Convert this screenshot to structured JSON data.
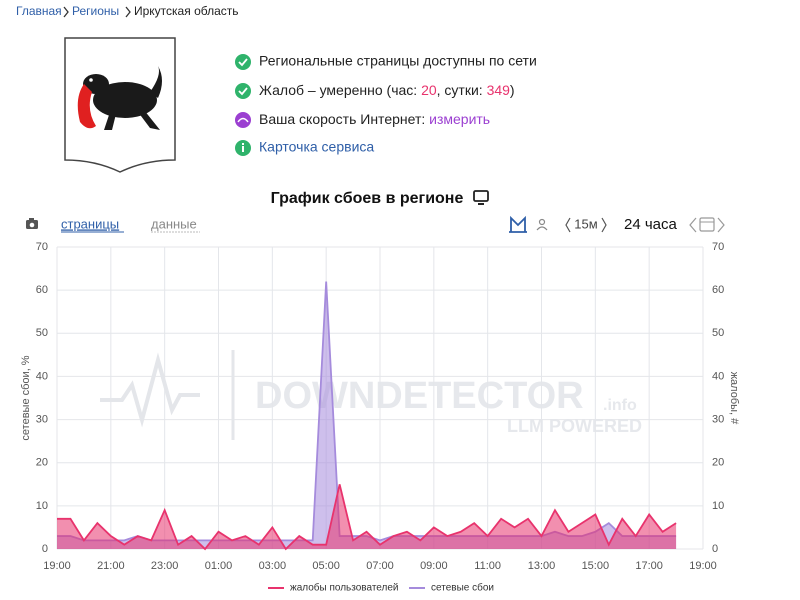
{
  "breadcrumb": [
    "Главная",
    "Регионы",
    "Иркутская область"
  ],
  "status": {
    "network": "Региональные страницы доступны по сети",
    "complaints": {
      "label": "Жалоб – умеренно (час: ",
      "hour": 20,
      "sep": ", сутки: ",
      "day": 349,
      "end": ")"
    },
    "speed": {
      "label": "Ваша скорость Интернет: ",
      "link": "измерить"
    },
    "card": "Карточка сервиса"
  },
  "toolbar": {
    "pages": "страницы",
    "data": "данные",
    "interval": "15м",
    "period": "24 часа"
  },
  "chart_data": {
    "type": "area",
    "title": "График сбоев в регионе",
    "ylabel": "сетевые сбои, %",
    "y2label": "жалобы, #",
    "watermark": {
      "title": "DOWNDETECTOR",
      "suffix": ".info",
      "subtitle": "LLM POWERED"
    },
    "categories": [
      "19:00",
      null,
      null,
      null,
      "21:00",
      null,
      null,
      null,
      "23:00",
      null,
      null,
      null,
      "01:00",
      null,
      null,
      null,
      "03:00",
      null,
      null,
      null,
      "05:00",
      null,
      null,
      null,
      "07:00",
      null,
      null,
      null,
      "09:00",
      null,
      null,
      null,
      "11:00",
      null,
      null,
      null,
      "13:00",
      null,
      null,
      null,
      "15:00",
      null,
      null,
      null,
      "17:00",
      null,
      null,
      null,
      "19:00"
    ],
    "ylim": [
      0,
      70
    ],
    "yticks": [
      0,
      10,
      20,
      30,
      40,
      50,
      60,
      70
    ],
    "y2lim": [
      0,
      70
    ],
    "y2ticks": [
      0,
      10,
      20,
      30,
      40,
      50,
      60,
      70
    ],
    "grid": true,
    "legend": "bottom",
    "series": [
      {
        "name": "жалобы пользователей",
        "color": "#e8336d",
        "axis": "y2",
        "values": [
          7,
          7,
          2,
          6,
          3,
          1,
          3,
          2,
          9,
          1,
          3,
          0,
          4,
          2,
          3,
          1,
          5,
          0,
          3,
          1,
          1,
          15,
          2,
          4,
          1,
          3,
          4,
          2,
          5,
          3,
          4,
          6,
          3,
          7,
          5,
          7,
          3,
          9,
          4,
          6,
          8,
          1,
          7,
          3,
          8,
          4,
          6,
          null,
          null
        ]
      },
      {
        "name": "сетевые сбои",
        "color": "#a58bdc",
        "values": [
          3,
          3,
          2,
          2,
          2,
          2,
          3,
          2,
          2,
          2,
          2,
          2,
          2,
          2,
          2,
          2,
          2,
          2,
          2,
          2,
          62,
          3,
          3,
          3,
          2,
          3,
          3,
          3,
          3,
          3,
          3,
          3,
          3,
          3,
          3,
          3,
          3,
          4,
          3,
          3,
          4,
          6,
          3,
          3,
          3,
          3,
          3,
          null,
          null
        ]
      }
    ]
  }
}
